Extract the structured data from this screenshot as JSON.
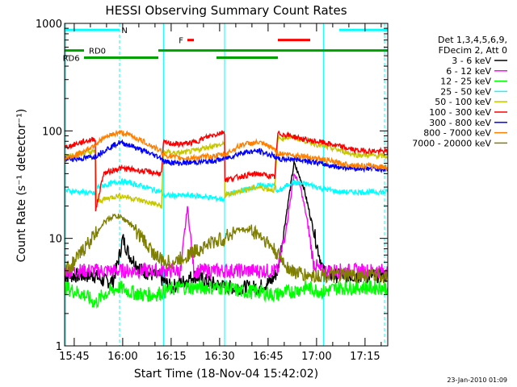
{
  "chart_data": {
    "type": "line",
    "title": "HESSI Observing Summary Count Rates",
    "xlabel": "Start Time (18-Nov-04 15:42:02)",
    "ylabel": "Count Rate (s⁻¹ detector⁻¹)",
    "ylog": true,
    "ylim": [
      1,
      1000
    ],
    "xlim_minutes": [
      0,
      100
    ],
    "x_tick_labels": [
      "15:45",
      "16:00",
      "16:15",
      "16:30",
      "16:45",
      "17:00",
      "17:15"
    ],
    "x_tick_minutes": [
      2.97,
      17.97,
      32.97,
      47.97,
      62.97,
      77.97,
      92.97
    ],
    "y_tick_labels": [
      "1",
      "10",
      "100",
      "1000"
    ],
    "y_tick_values": [
      1,
      10,
      100,
      1000
    ],
    "legend_header": [
      "Det 1,3,4,5,6,9,",
      "FDecim 2, Att 0"
    ],
    "legend_position": "right",
    "timestamp": "23-Jan-2010 01:09",
    "flag_labels": {
      "N": "N",
      "F": "F",
      "RD0": "RD0",
      "RD6": "RD6"
    },
    "flags": {
      "N": {
        "color": "#00ffff",
        "segments": [
          [
            0,
            17
          ],
          [
            85,
            100
          ]
        ],
        "level": 870
      },
      "F": {
        "color": "#ff0000",
        "segments": [
          [
            38,
            40
          ],
          [
            66,
            76
          ]
        ],
        "level": 700
      },
      "RD0": {
        "color": "#00a000",
        "segments": [
          [
            0,
            6
          ],
          [
            29,
            100
          ]
        ],
        "level": 560
      },
      "RD6": {
        "color": "#00a000",
        "segments": [
          [
            6,
            29
          ],
          [
            47,
            66
          ]
        ],
        "level": 480
      }
    },
    "vlines_cyan_solid": [
      0.3,
      30.6,
      49.5,
      80.1
    ],
    "vlines_cyan_dashed": [
      17,
      99
    ],
    "series": [
      {
        "name": "3 - 6 keV",
        "color": "#000000",
        "x": [
          0,
          9.5,
          12,
          15,
          17,
          18,
          20,
          24,
          28,
          29,
          30.6,
          33,
          37,
          40,
          44,
          49.5,
          55,
          60,
          64,
          66,
          69,
          71,
          74,
          77,
          80,
          83,
          90,
          100
        ],
        "y": [
          4.5,
          4.5,
          4,
          4,
          7,
          10,
          7,
          5,
          4.5,
          4.5,
          4,
          3.5,
          4,
          4.5,
          4,
          3.5,
          3.5,
          3.5,
          4,
          5,
          20,
          50,
          30,
          12,
          5,
          4.5,
          4.5,
          4.5
        ]
      },
      {
        "name": "6 - 12 keV",
        "color": "#ff00ff",
        "x": [
          0,
          9.5,
          15,
          18,
          24,
          30.6,
          36,
          38,
          40,
          44,
          49.5,
          60,
          66,
          69,
          71,
          73,
          75,
          77,
          79,
          83,
          100
        ],
        "y": [
          5,
          5,
          5,
          5,
          5,
          5,
          5,
          20,
          5,
          5,
          5,
          5,
          5,
          15,
          40,
          30,
          15,
          6,
          5,
          5,
          5
        ]
      },
      {
        "name": "12 - 25 keV",
        "color": "#00ff00",
        "x": [
          0,
          6,
          9.5,
          12,
          17,
          20,
          24,
          28,
          30.6,
          35,
          40,
          45,
          49.5,
          55,
          60,
          65,
          70,
          75,
          80,
          85,
          90,
          100
        ],
        "y": [
          3.5,
          3,
          2.5,
          3,
          3.5,
          3.2,
          3,
          3,
          3.2,
          3.5,
          3.5,
          3.5,
          3.5,
          3.2,
          3.2,
          3,
          3.2,
          3.5,
          3.2,
          3.5,
          3.5,
          3.5
        ]
      },
      {
        "name": "25 - 50 keV",
        "color": "#00ffff",
        "x": [
          0,
          5,
          9.5,
          10,
          14,
          17,
          20,
          25,
          30,
          30.6,
          35,
          40,
          45,
          49.5,
          49.6,
          55,
          60,
          65,
          66,
          70,
          75,
          80,
          85,
          90,
          100
        ],
        "y": [
          28,
          27,
          26,
          30,
          32,
          34,
          33,
          30,
          27,
          25,
          25,
          25,
          24,
          23,
          25,
          28,
          31,
          31,
          27,
          33,
          32,
          29,
          27,
          27,
          27
        ]
      },
      {
        "name": "50 - 100 keV",
        "color": "#c8c800",
        "x": [
          0,
          5,
          9.5,
          10,
          14,
          17,
          20,
          25,
          30,
          30.6,
          35,
          40,
          45,
          49.5,
          49.6,
          55,
          60,
          65,
          66,
          70,
          75,
          80,
          85,
          90,
          100
        ],
        "y": [
          58,
          62,
          64,
          22,
          24,
          25,
          24,
          22,
          20,
          64,
          62,
          65,
          72,
          75,
          25,
          28,
          30,
          28,
          85,
          88,
          80,
          72,
          66,
          60,
          58
        ]
      },
      {
        "name": "100 - 300 keV",
        "color": "#ff0000",
        "x": [
          0,
          5,
          9.5,
          9.6,
          12,
          17,
          20,
          25,
          30,
          30.6,
          35,
          40,
          45,
          49.5,
          49.6,
          55,
          60,
          65,
          66,
          70,
          75,
          80,
          85,
          90,
          100
        ],
        "y": [
          70,
          78,
          85,
          18,
          40,
          45,
          44,
          42,
          40,
          78,
          75,
          78,
          90,
          98,
          35,
          38,
          40,
          37,
          95,
          90,
          82,
          78,
          72,
          66,
          64
        ]
      },
      {
        "name": "300 - 800 keV",
        "color": "#0000ff",
        "x": [
          0,
          5,
          9.5,
          12,
          15,
          17,
          20,
          25,
          30,
          30.6,
          35,
          40,
          45,
          49.5,
          55,
          60,
          65,
          66,
          70,
          75,
          80,
          85,
          90,
          100
        ],
        "y": [
          55,
          55,
          58,
          65,
          73,
          78,
          74,
          64,
          56,
          52,
          50,
          51,
          52,
          55,
          63,
          65,
          58,
          54,
          55,
          53,
          49,
          46,
          45,
          44
        ]
      },
      {
        "name": "800 - 7000 keV",
        "color": "#ff8000",
        "x": [
          0,
          5,
          9.5,
          12,
          15,
          17,
          20,
          25,
          30,
          30.6,
          35,
          40,
          45,
          49.5,
          55,
          60,
          65,
          66,
          70,
          75,
          80,
          85,
          90,
          100
        ],
        "y": [
          55,
          62,
          75,
          85,
          93,
          97,
          92,
          78,
          64,
          60,
          56,
          56,
          58,
          60,
          75,
          78,
          68,
          62,
          60,
          58,
          54,
          50,
          48,
          46
        ]
      },
      {
        "name": "7000 - 20000 keV",
        "color": "#808000",
        "x": [
          0,
          3,
          6,
          9.5,
          12,
          15,
          17,
          20,
          24,
          28,
          30.6,
          34,
          38,
          42,
          45,
          49.5,
          53,
          57,
          60,
          63,
          66,
          70,
          75,
          80,
          85,
          90,
          100
        ],
        "y": [
          5,
          6,
          8,
          11,
          14,
          16,
          16,
          14,
          10,
          7,
          6,
          6,
          7,
          8,
          9,
          10,
          12,
          12,
          11,
          9,
          7,
          5,
          4.5,
          4.5,
          4.5,
          4.5,
          4.5
        ]
      }
    ]
  }
}
